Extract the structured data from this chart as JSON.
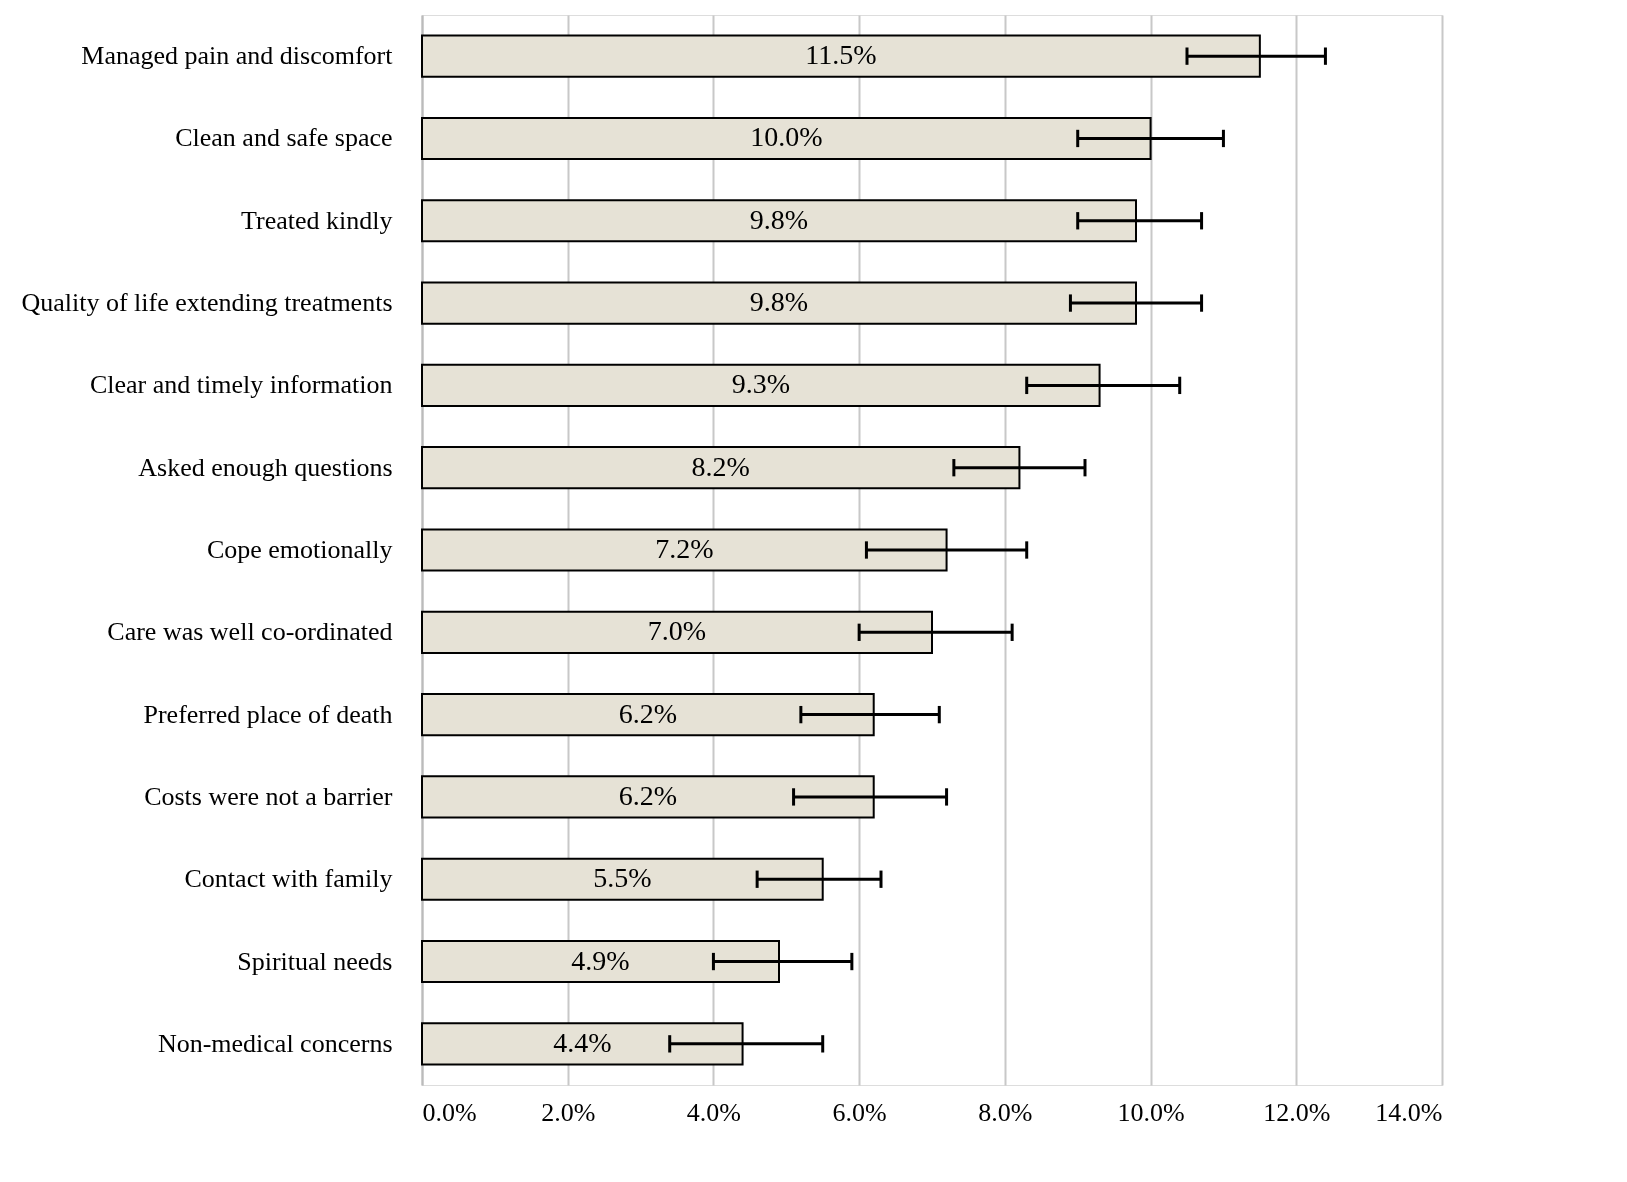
{
  "chart_data": {
    "type": "bar",
    "orientation": "horizontal",
    "categories": [
      "Managed pain and discomfort",
      "Clean and safe space",
      "Treated kindly",
      "Quality of life extending treatments",
      "Clear and timely information",
      "Asked enough questions",
      "Cope emotionally",
      "Care was well co-ordinated",
      "Preferred place of death",
      "Costs were not a barrier",
      "Contact with family",
      "Spiritual needs",
      "Non-medical concerns"
    ],
    "values": [
      11.5,
      10.0,
      9.8,
      9.8,
      9.3,
      8.2,
      7.2,
      7.0,
      6.2,
      6.2,
      5.5,
      4.9,
      4.4
    ],
    "value_labels": [
      "11.5%",
      "10.0%",
      "9.8%",
      "9.8%",
      "9.3%",
      "8.2%",
      "7.2%",
      "7.0%",
      "6.2%",
      "6.2%",
      "5.5%",
      "4.9%",
      "4.4%"
    ],
    "errors": [
      [
        10.5,
        12.4
      ],
      [
        9.0,
        11.0
      ],
      [
        9.0,
        10.7
      ],
      [
        8.9,
        10.7
      ],
      [
        8.3,
        10.4
      ],
      [
        7.3,
        9.1
      ],
      [
        6.1,
        8.3
      ],
      [
        6.0,
        8.1
      ],
      [
        5.2,
        7.1
      ],
      [
        5.1,
        7.2
      ],
      [
        4.6,
        6.3
      ],
      [
        4.0,
        5.9
      ],
      [
        3.4,
        5.5
      ]
    ],
    "color": "#e6e2d6",
    "xlim": [
      0,
      14
    ],
    "xticks": [
      {
        "value": 0,
        "label": "0.0%"
      },
      {
        "value": 2,
        "label": "2.0%"
      },
      {
        "value": 4,
        "label": "4.0%"
      },
      {
        "value": 6,
        "label": "6.0%"
      },
      {
        "value": 8,
        "label": "8.0%"
      },
      {
        "value": 10,
        "label": "10.0%"
      },
      {
        "value": 12,
        "label": "12.0%"
      },
      {
        "value": 14,
        "label": "14.0%"
      }
    ],
    "grid": "x"
  }
}
